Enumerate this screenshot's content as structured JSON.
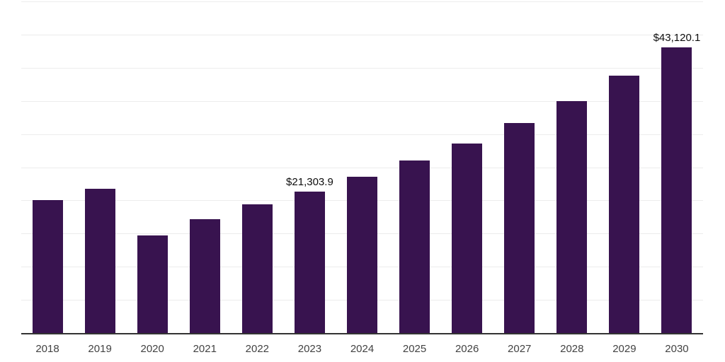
{
  "chart_data": {
    "type": "bar",
    "title": "",
    "xlabel": "",
    "ylabel": "",
    "categories": [
      "2018",
      "2019",
      "2020",
      "2021",
      "2022",
      "2023",
      "2024",
      "2025",
      "2026",
      "2027",
      "2028",
      "2029",
      "2030"
    ],
    "values": [
      20000,
      21700,
      14700,
      17200,
      19400,
      21303.9,
      23600,
      26000,
      28600,
      31700,
      35000,
      38800,
      43120.1
    ],
    "point_labels": [
      "",
      "",
      "",
      "",
      "",
      "$21,303.9",
      "",
      "",
      "",
      "",
      "",
      "",
      "$43,120.1"
    ],
    "ylim": [
      0,
      50000
    ],
    "gridline_step": 5000,
    "grid": true,
    "legend": "none",
    "y_tick_labels_visible": false,
    "colors": {
      "bar": "#38134F",
      "axis_line": "#333333",
      "gridline": "#ececec",
      "tick_label": "#424242",
      "data_label": "#0d0d0d",
      "background": "#ffffff"
    }
  }
}
